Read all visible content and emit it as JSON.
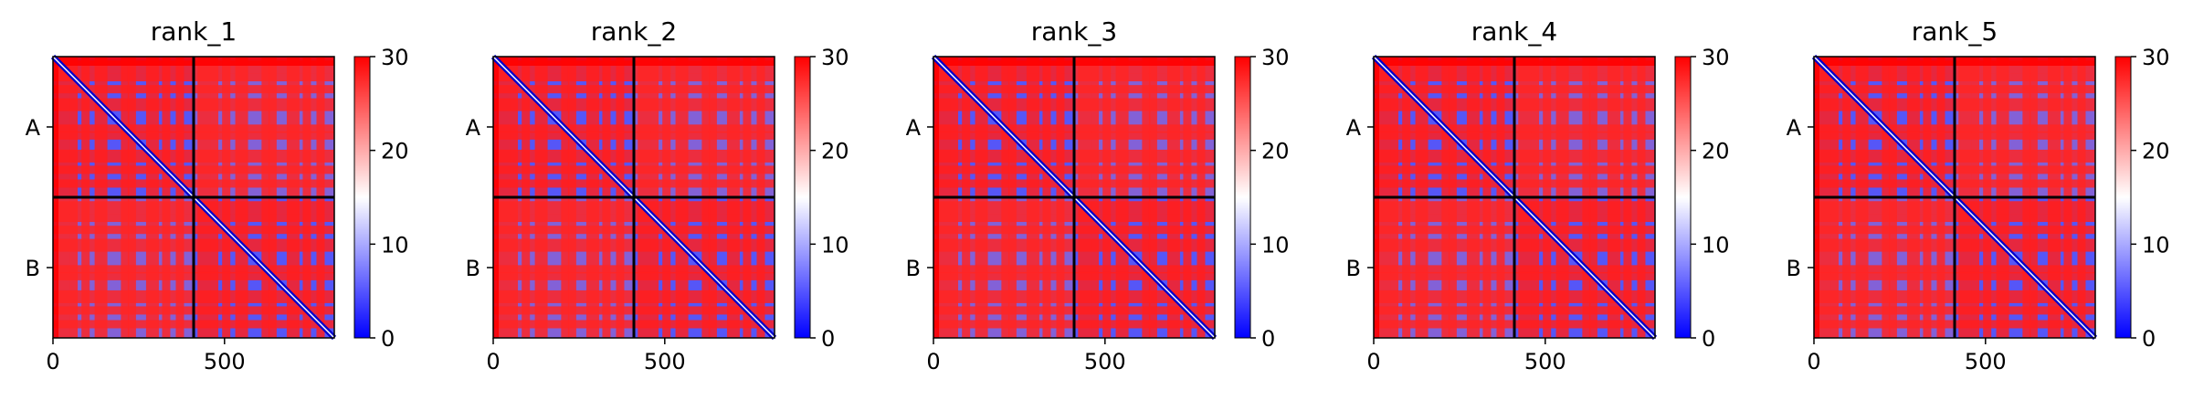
{
  "chart_data": [
    {
      "type": "heatmap",
      "title": "rank_1",
      "x_ticks": [
        0,
        500
      ],
      "y_labels": [
        "A",
        "B"
      ],
      "colorbar_ticks": [
        0,
        10,
        20,
        30
      ],
      "value_range": [
        0,
        30
      ],
      "cmap": [
        "#0000ff",
        "#ffffff",
        "#ff0000"
      ],
      "chain_boundary": 410,
      "x_extent": [
        0,
        820
      ],
      "stripes": [
        30,
        60,
        95,
        140,
        210,
        230,
        290,
        330,
        370,
        440,
        470,
        505,
        550,
        620,
        640,
        700,
        740,
        780
      ]
    },
    {
      "type": "heatmap",
      "title": "rank_2",
      "x_ticks": [
        0,
        500
      ],
      "y_labels": [
        "A",
        "B"
      ],
      "colorbar_ticks": [
        0,
        10,
        20,
        30
      ],
      "value_range": [
        0,
        30
      ],
      "cmap": [
        "#0000ff",
        "#ffffff",
        "#ff0000"
      ],
      "chain_boundary": 410,
      "x_extent": [
        0,
        820
      ],
      "stripes": [
        30,
        60,
        95,
        140,
        210,
        230,
        290,
        330,
        370,
        440,
        470,
        505,
        550,
        620,
        640,
        700,
        740,
        780
      ]
    },
    {
      "type": "heatmap",
      "title": "rank_3",
      "x_ticks": [
        0,
        500
      ],
      "y_labels": [
        "A",
        "B"
      ],
      "colorbar_ticks": [
        0,
        10,
        20,
        30
      ],
      "value_range": [
        0,
        30
      ],
      "cmap": [
        "#0000ff",
        "#ffffff",
        "#ff0000"
      ],
      "chain_boundary": 410,
      "x_extent": [
        0,
        820
      ],
      "stripes": [
        30,
        60,
        95,
        140,
        210,
        230,
        290,
        330,
        370,
        440,
        470,
        505,
        550,
        620,
        640,
        700,
        740,
        780
      ]
    },
    {
      "type": "heatmap",
      "title": "rank_4",
      "x_ticks": [
        0,
        500
      ],
      "y_labels": [
        "A",
        "B"
      ],
      "colorbar_ticks": [
        0,
        10,
        20,
        30
      ],
      "value_range": [
        0,
        30
      ],
      "cmap": [
        "#0000ff",
        "#ffffff",
        "#ff0000"
      ],
      "chain_boundary": 410,
      "x_extent": [
        0,
        820
      ],
      "stripes": [
        30,
        60,
        95,
        140,
        210,
        230,
        290,
        330,
        370,
        440,
        470,
        505,
        550,
        620,
        640,
        700,
        740,
        780
      ]
    },
    {
      "type": "heatmap",
      "title": "rank_5",
      "x_ticks": [
        0,
        500
      ],
      "y_labels": [
        "A",
        "B"
      ],
      "colorbar_ticks": [
        0,
        10,
        20,
        30
      ],
      "value_range": [
        0,
        30
      ],
      "cmap": [
        "#0000ff",
        "#ffffff",
        "#ff0000"
      ],
      "chain_boundary": 410,
      "x_extent": [
        0,
        820
      ],
      "stripes": [
        30,
        60,
        95,
        140,
        210,
        230,
        290,
        330,
        370,
        440,
        470,
        505,
        550,
        620,
        640,
        700,
        740,
        780
      ]
    }
  ]
}
